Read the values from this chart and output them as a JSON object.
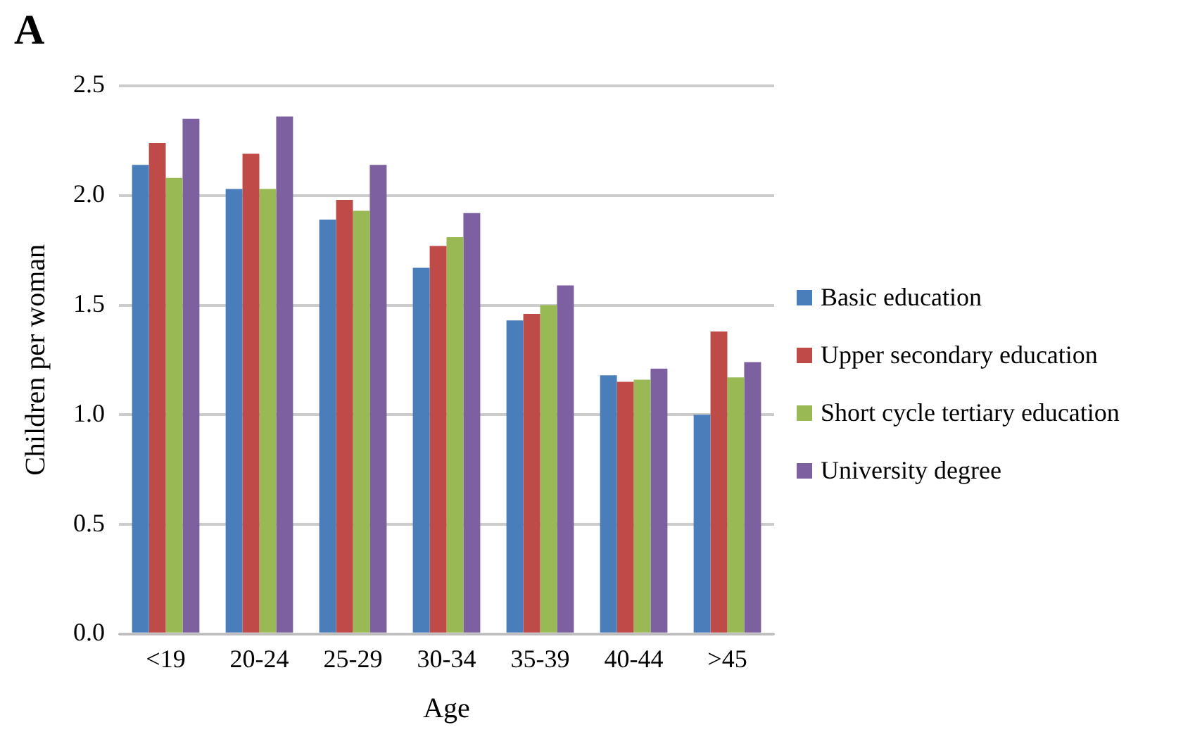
{
  "chart_data": {
    "type": "bar",
    "title": "A",
    "xlabel": "Age",
    "ylabel": "Children per woman",
    "categories": [
      "<19",
      "20-24",
      "25-29",
      "30-34",
      "35-39",
      "40-44",
      ">45"
    ],
    "series": [
      {
        "name": "Basic education",
        "color": "#4a7ebb",
        "values": [
          2.14,
          2.03,
          1.89,
          1.67,
          1.43,
          1.18,
          1.0
        ]
      },
      {
        "name": "Upper secondary education",
        "color": "#be4b48",
        "values": [
          2.24,
          2.19,
          1.98,
          1.77,
          1.46,
          1.15,
          1.38
        ]
      },
      {
        "name": "Short cycle tertiary education",
        "color": "#98b954",
        "values": [
          2.08,
          2.03,
          1.93,
          1.81,
          1.5,
          1.16,
          1.17
        ]
      },
      {
        "name": "University degree",
        "color": "#7d60a0",
        "values": [
          2.35,
          2.36,
          2.14,
          1.92,
          1.59,
          1.21,
          1.24
        ]
      }
    ],
    "ylim": [
      0,
      2.5
    ],
    "yticks": [
      {
        "value": 0,
        "label": "0.0"
      },
      {
        "value": 0.5,
        "label": "0.5"
      },
      {
        "value": 1,
        "label": "1.0"
      },
      {
        "value": 1.5,
        "label": "1.5"
      },
      {
        "value": 2,
        "label": "2.0"
      },
      {
        "value": 2.5,
        "label": "2.5"
      }
    ],
    "grid": "y",
    "legend": "right"
  }
}
